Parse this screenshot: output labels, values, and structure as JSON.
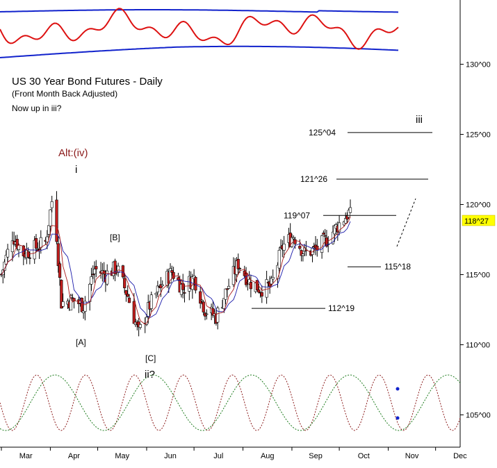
{
  "chart_data": {
    "type": "candlestick",
    "title": "US 30 Year Bond Futures - Daily",
    "subtitle": "(Front Month Back Adjusted)",
    "note": "Now up in iii?",
    "x_axis": {
      "ticks": [
        "Mar",
        "Apr",
        "May",
        "Jun",
        "Jul",
        "Aug",
        "Sep",
        "Oct",
        "Nov",
        "Dec"
      ]
    },
    "y_axis": {
      "side": "right",
      "ticks": [
        "130^00",
        "125^00",
        "120^00",
        "115^00",
        "110^00",
        "105^00"
      ],
      "tick_values": [
        130,
        125,
        120,
        115,
        110,
        105
      ],
      "range": [
        103,
        134
      ]
    },
    "last_price": {
      "label": "118^27",
      "value": 118.84
    },
    "price_path": [
      [
        "Mar 01",
        115.0
      ],
      [
        "Mar 08",
        117.8
      ],
      [
        "Mar 15",
        116.5
      ],
      [
        "Mar 22",
        116.9
      ],
      [
        "Mar 29",
        117.3
      ],
      [
        "Apr 03",
        121.0
      ],
      [
        "Apr 08",
        113.0
      ],
      [
        "Apr 15",
        113.2
      ],
      [
        "Apr 22",
        112.8
      ],
      [
        "Apr 29",
        115.4
      ],
      [
        "May 06",
        115.0
      ],
      [
        "May 13",
        115.5
      ],
      [
        "May 20",
        113.5
      ],
      [
        "May 27",
        110.8
      ],
      [
        "Jun 03",
        112.8
      ],
      [
        "Jun 10",
        114.2
      ],
      [
        "Jun 17",
        115.2
      ],
      [
        "Jun 24",
        114.0
      ],
      [
        "Jul 01",
        114.8
      ],
      [
        "Jul 08",
        112.5
      ],
      [
        "Jul 15",
        112.0
      ],
      [
        "Jul 22",
        114.0
      ],
      [
        "Jul 29",
        115.8
      ],
      [
        "Aug 05",
        114.5
      ],
      [
        "Aug 12",
        114.0
      ],
      [
        "Aug 19",
        114.2
      ],
      [
        "Aug 26",
        117.0
      ],
      [
        "Sep 02",
        117.8
      ],
      [
        "Sep 09",
        116.5
      ],
      [
        "Sep 16",
        116.8
      ],
      [
        "Sep 23",
        117.5
      ],
      [
        "Sep 30",
        118.5
      ],
      [
        "Oct 07",
        119.4
      ],
      [
        "Oct 10",
        118.84
      ]
    ],
    "series": [
      {
        "name": "",
        "color": "#1a1aaa"
      },
      {
        "name": "",
        "color": "#aa1a1a"
      }
    ],
    "levels": [
      {
        "label": "125^04",
        "value": 125.13
      },
      {
        "label": "121^26",
        "value": 121.81
      },
      {
        "label": "119^07",
        "value": 119.22
      },
      {
        "label": "115^18",
        "value": 115.56
      },
      {
        "label": "112^19",
        "value": 112.59
      }
    ],
    "wave_labels": {
      "alt_iv": "Alt:(iv)",
      "i": "i",
      "B": "[B]",
      "A": "[A]",
      "C": "[C]",
      "ii": "ii?",
      "iii": "iii"
    },
    "indicator_panel": {
      "position": "top",
      "colors": [
        "#dd1111",
        "#1122cc"
      ]
    },
    "cycle_panel": {
      "position": "bottom",
      "colors": [
        "#8b1a1a",
        "#1a7a1a",
        "#1122cc"
      ]
    }
  },
  "colors": {
    "up_candle": "#ffffff",
    "down_candle": "#c41e1e",
    "candle_outline": "#000000",
    "price_box": "#ffff00",
    "level_line": "#000000"
  }
}
